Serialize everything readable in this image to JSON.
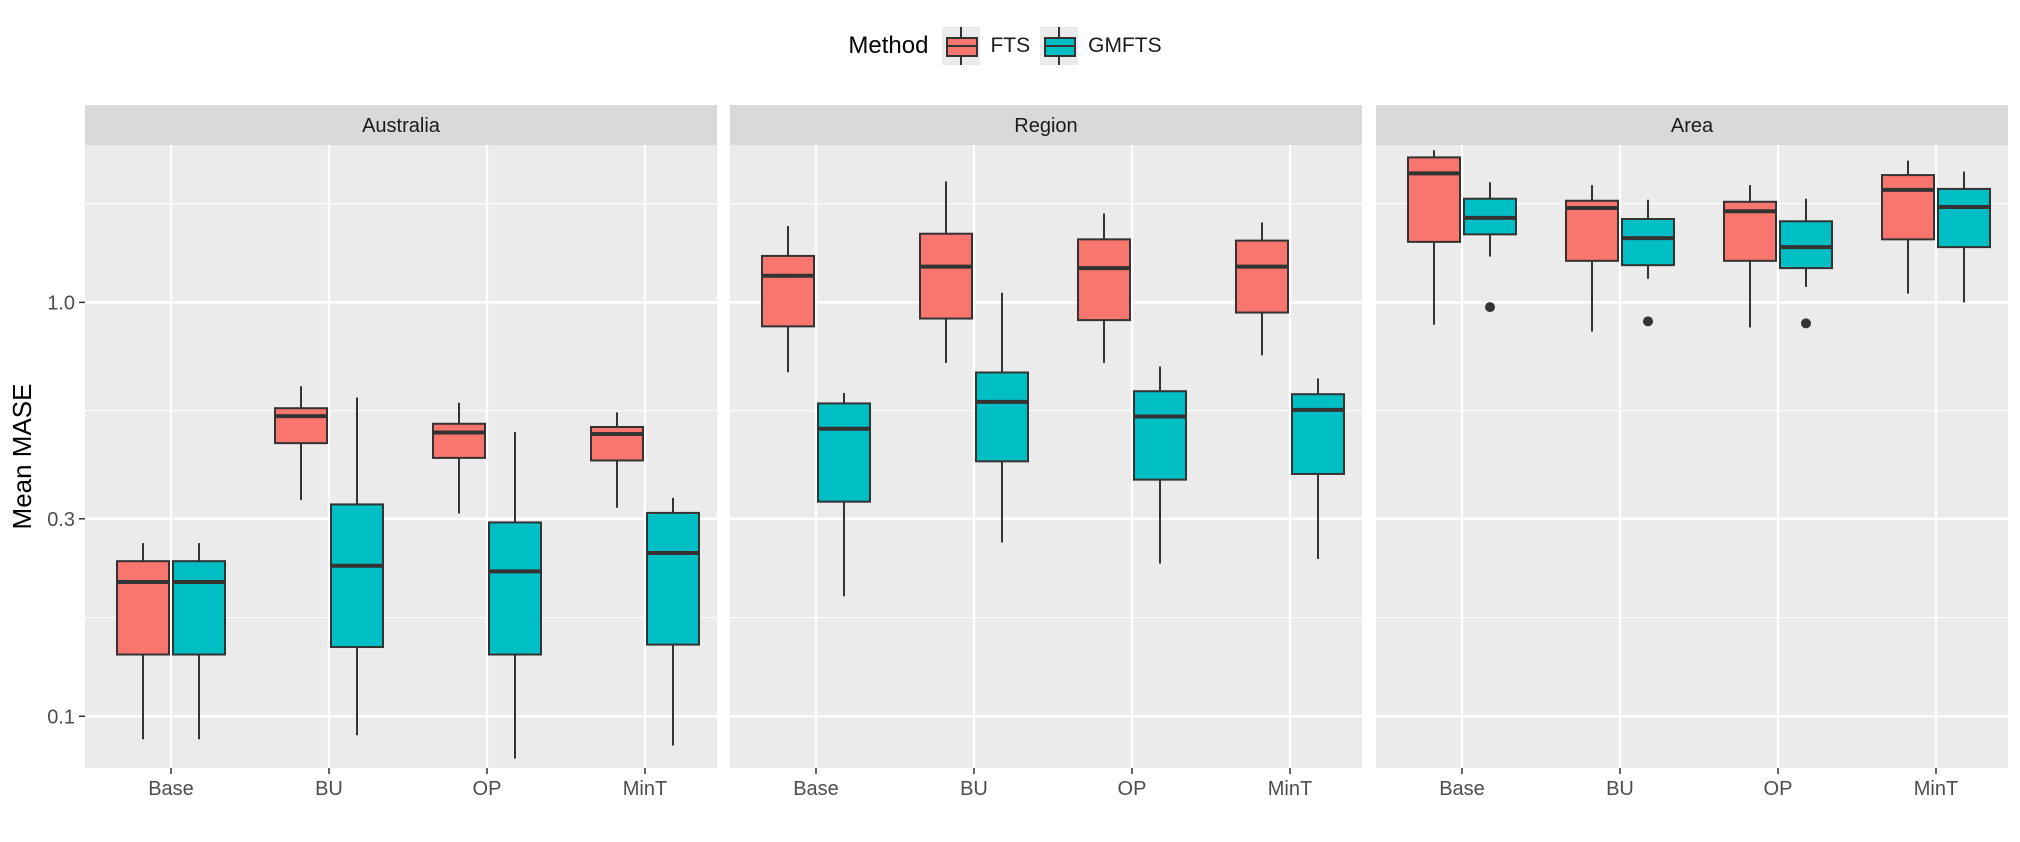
{
  "chart_data": {
    "type": "boxplot",
    "ylabel": "Mean MASE",
    "xlabel": "",
    "y_scale": "log10",
    "ylim": [
      0.075,
      2.4
    ],
    "y_ticks": [
      0.1,
      0.3,
      1.0
    ],
    "y_tick_labels": [
      "0.1",
      "0.3",
      "1.0"
    ],
    "categories": [
      "Base",
      "BU",
      "OP",
      "MinT"
    ],
    "legend": {
      "title": "Method",
      "position": "top",
      "items": [
        {
          "label": "FTS",
          "color": "#F8766D"
        },
        {
          "label": "GMFTS",
          "color": "#00BFC4"
        }
      ]
    },
    "panels": [
      {
        "title": "Australia",
        "boxes": [
          {
            "category": "Base",
            "method": "FTS",
            "min": 0.088,
            "q1": 0.141,
            "median": 0.211,
            "q3": 0.237,
            "max": 0.262,
            "outliers": []
          },
          {
            "category": "Base",
            "method": "GMFTS",
            "min": 0.088,
            "q1": 0.141,
            "median": 0.211,
            "q3": 0.237,
            "max": 0.262,
            "outliers": []
          },
          {
            "category": "BU",
            "method": "FTS",
            "min": 0.333,
            "q1": 0.457,
            "median": 0.531,
            "q3": 0.555,
            "max": 0.627,
            "outliers": []
          },
          {
            "category": "BU",
            "method": "GMFTS",
            "min": 0.09,
            "q1": 0.147,
            "median": 0.231,
            "q3": 0.325,
            "max": 0.589,
            "outliers": []
          },
          {
            "category": "OP",
            "method": "FTS",
            "min": 0.309,
            "q1": 0.421,
            "median": 0.485,
            "q3": 0.509,
            "max": 0.572,
            "outliers": []
          },
          {
            "category": "OP",
            "method": "GMFTS",
            "min": 0.079,
            "q1": 0.141,
            "median": 0.224,
            "q3": 0.294,
            "max": 0.486,
            "outliers": []
          },
          {
            "category": "MinT",
            "method": "FTS",
            "min": 0.319,
            "q1": 0.415,
            "median": 0.481,
            "q3": 0.5,
            "max": 0.542,
            "outliers": []
          },
          {
            "category": "MinT",
            "method": "GMFTS",
            "min": 0.085,
            "q1": 0.149,
            "median": 0.248,
            "q3": 0.31,
            "max": 0.337,
            "outliers": []
          }
        ]
      },
      {
        "title": "Region",
        "boxes": [
          {
            "category": "Base",
            "method": "FTS",
            "min": 0.678,
            "q1": 0.875,
            "median": 1.16,
            "q3": 1.295,
            "max": 1.53,
            "outliers": []
          },
          {
            "category": "Base",
            "method": "GMFTS",
            "min": 0.195,
            "q1": 0.33,
            "median": 0.495,
            "q3": 0.57,
            "max": 0.604,
            "outliers": []
          },
          {
            "category": "BU",
            "method": "FTS",
            "min": 0.714,
            "q1": 0.914,
            "median": 1.22,
            "q3": 1.465,
            "max": 1.96,
            "outliers": []
          },
          {
            "category": "BU",
            "method": "GMFTS",
            "min": 0.263,
            "q1": 0.413,
            "median": 0.575,
            "q3": 0.677,
            "max": 1.055,
            "outliers": []
          },
          {
            "category": "OP",
            "method": "FTS",
            "min": 0.714,
            "q1": 0.906,
            "median": 1.21,
            "q3": 1.42,
            "max": 1.64,
            "outliers": []
          },
          {
            "category": "OP",
            "method": "GMFTS",
            "min": 0.234,
            "q1": 0.373,
            "median": 0.53,
            "q3": 0.61,
            "max": 0.7,
            "outliers": []
          },
          {
            "category": "MinT",
            "method": "FTS",
            "min": 0.745,
            "q1": 0.945,
            "median": 1.22,
            "q3": 1.41,
            "max": 1.56,
            "outliers": []
          },
          {
            "category": "MinT",
            "method": "GMFTS",
            "min": 0.24,
            "q1": 0.385,
            "median": 0.55,
            "q3": 0.6,
            "max": 0.655,
            "outliers": []
          }
        ]
      },
      {
        "title": "Area",
        "boxes": [
          {
            "category": "Base",
            "method": "FTS",
            "min": 0.883,
            "q1": 1.4,
            "median": 2.05,
            "q3": 2.24,
            "max": 2.33,
            "outliers": []
          },
          {
            "category": "Base",
            "method": "GMFTS",
            "min": 1.29,
            "q1": 1.46,
            "median": 1.6,
            "q3": 1.78,
            "max": 1.95,
            "outliers": [
              0.974
            ]
          },
          {
            "category": "BU",
            "method": "FTS",
            "min": 0.85,
            "q1": 1.26,
            "median": 1.69,
            "q3": 1.76,
            "max": 1.92,
            "outliers": []
          },
          {
            "category": "BU",
            "method": "GMFTS",
            "min": 1.14,
            "q1": 1.23,
            "median": 1.43,
            "q3": 1.59,
            "max": 1.77,
            "outliers": [
              0.9
            ]
          },
          {
            "category": "OP",
            "method": "FTS",
            "min": 0.87,
            "q1": 1.26,
            "median": 1.66,
            "q3": 1.75,
            "max": 1.92,
            "outliers": []
          },
          {
            "category": "OP",
            "method": "GMFTS",
            "min": 1.09,
            "q1": 1.21,
            "median": 1.36,
            "q3": 1.57,
            "max": 1.78,
            "outliers": [
              0.89
            ]
          },
          {
            "category": "MinT",
            "method": "FTS",
            "min": 1.05,
            "q1": 1.42,
            "median": 1.87,
            "q3": 2.03,
            "max": 2.2,
            "outliers": []
          },
          {
            "category": "MinT",
            "method": "GMFTS",
            "min": 1.0,
            "q1": 1.36,
            "median": 1.7,
            "q3": 1.88,
            "max": 2.07,
            "outliers": []
          }
        ]
      }
    ]
  }
}
